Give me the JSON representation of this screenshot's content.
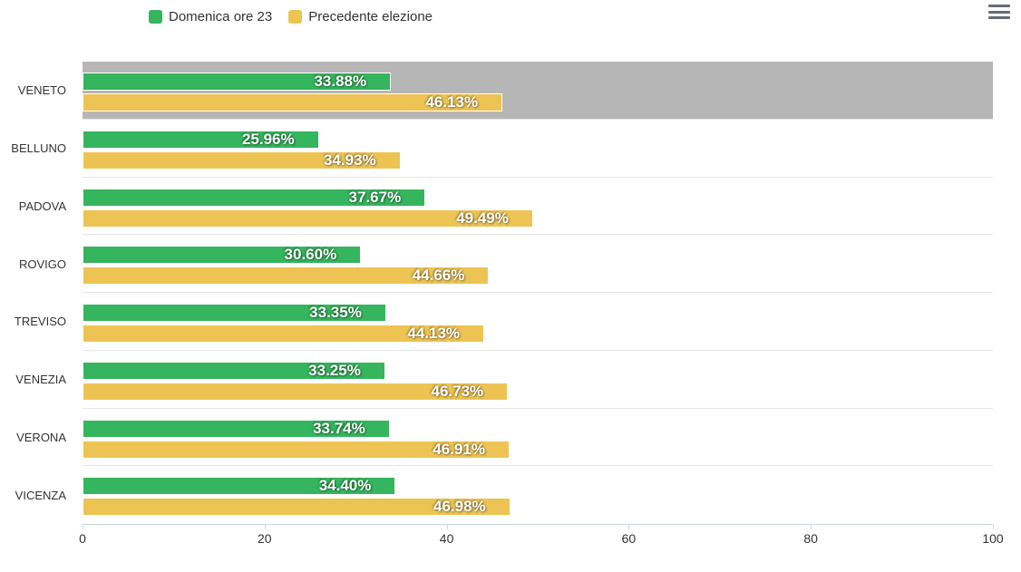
{
  "legend": {
    "items": [
      {
        "label": "Domenica ore 23",
        "color": "#35b55d",
        "icon": "green-swatch"
      },
      {
        "label": "Precedente elezione",
        "color": "#edc453",
        "icon": "yellow-swatch"
      }
    ]
  },
  "menu": {
    "icon": "hamburger-menu-icon",
    "color": "#666d73"
  },
  "chart_data": {
    "type": "bar",
    "orientation": "horizontal",
    "title": "",
    "categories": [
      "VENETO",
      "BELLUNO",
      "PADOVA",
      "ROVIGO",
      "TREVISO",
      "VENEZIA",
      "VERONA",
      "VICENZA"
    ],
    "series": [
      {
        "name": "Domenica ore 23",
        "color": "#35b55d",
        "values": [
          33.88,
          25.96,
          37.67,
          30.6,
          33.35,
          33.25,
          33.74,
          34.4
        ],
        "labels": [
          "33.88%",
          "25.96%",
          "37.67%",
          "30.60%",
          "33.35%",
          "33.25%",
          "33.74%",
          "34.40%"
        ]
      },
      {
        "name": "Precedente elezione",
        "color": "#edc453",
        "values": [
          46.13,
          34.93,
          49.49,
          44.66,
          44.13,
          46.73,
          46.91,
          46.98
        ],
        "labels": [
          "46.13%",
          "34.93%",
          "49.49%",
          "44.66%",
          "44.13%",
          "46.73%",
          "46.91%",
          "46.98%"
        ]
      }
    ],
    "highlighted_category": "VENETO",
    "highlight_color": "#b6b6b6",
    "xlim": [
      0,
      100
    ],
    "xticks": [
      0,
      20,
      40,
      60,
      80,
      100
    ],
    "xtick_labels": [
      "0",
      "20",
      "40",
      "60",
      "80",
      "100"
    ],
    "grid": "category-separators-only",
    "legend_position": "top",
    "data_label_style": "white-bold-inside-right"
  }
}
